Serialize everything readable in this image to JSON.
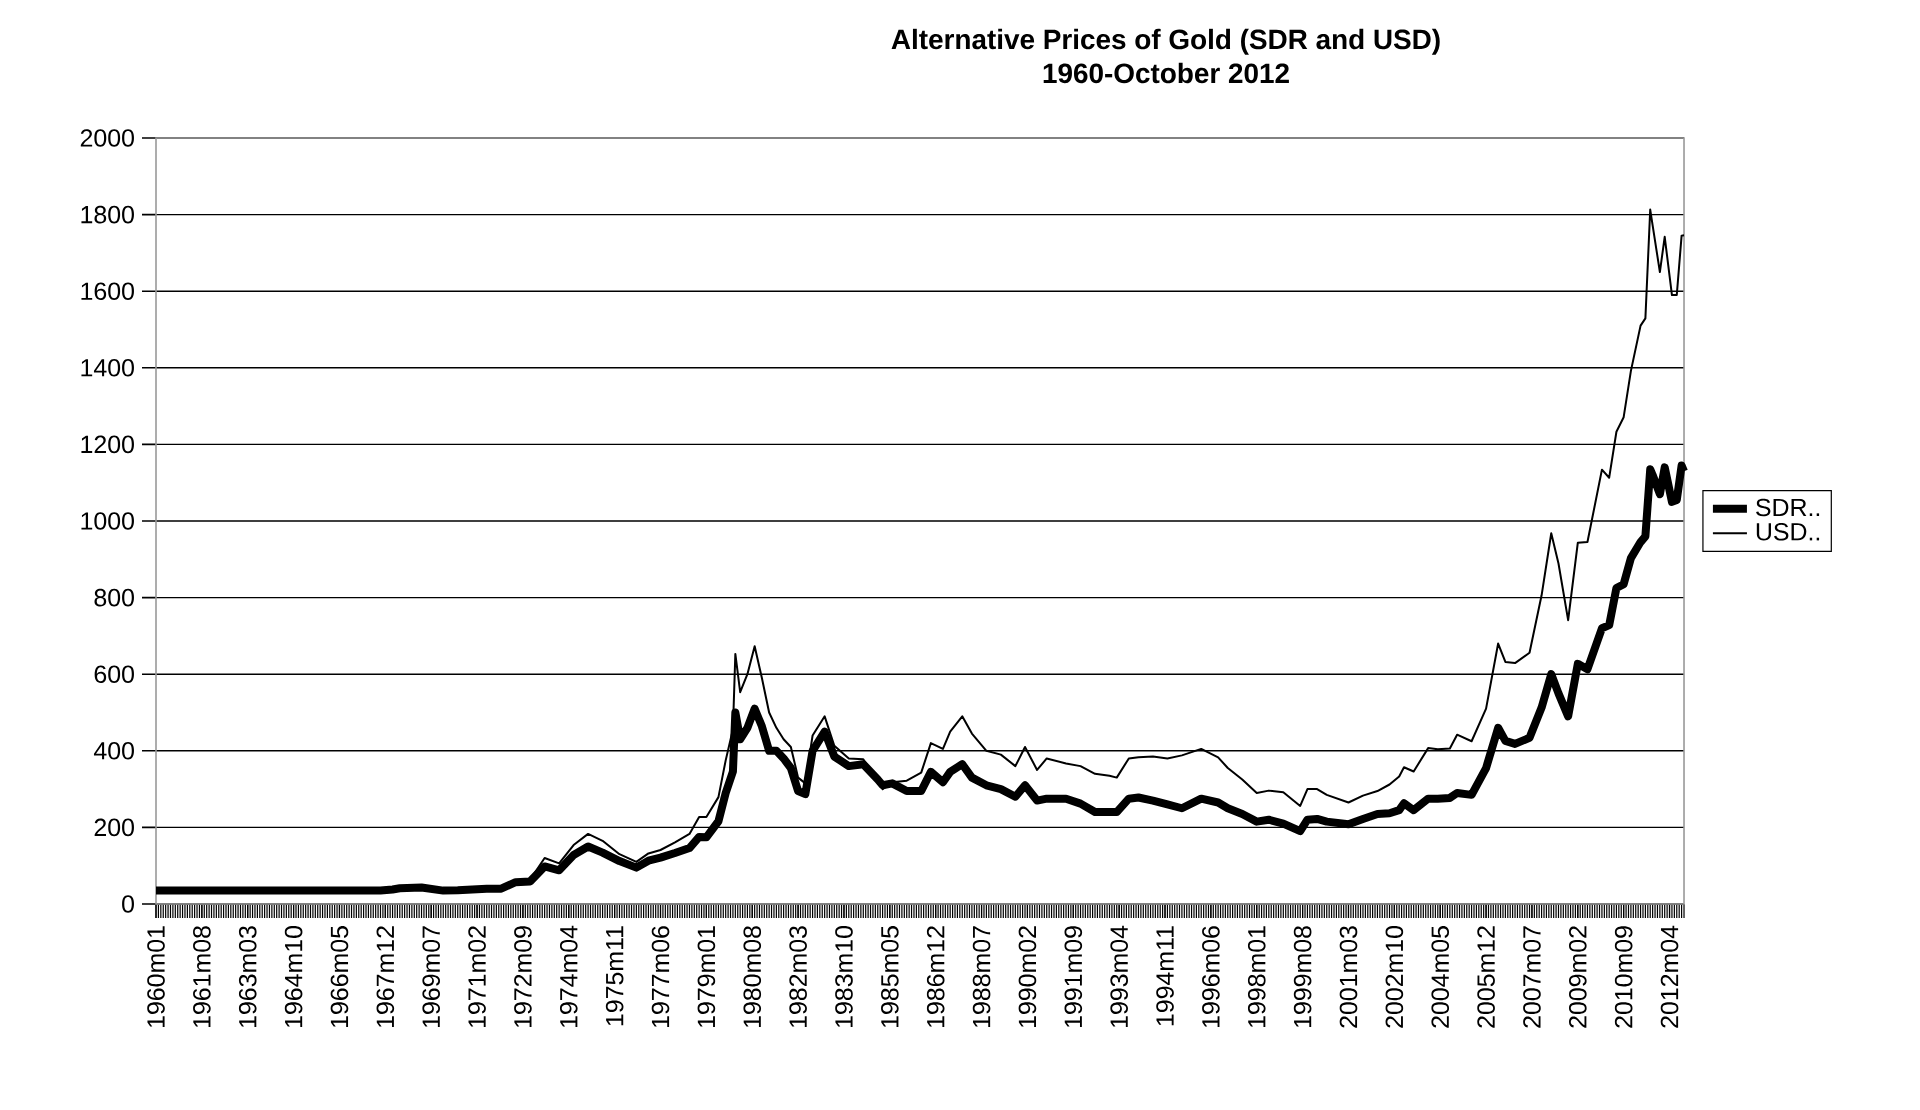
{
  "chart_data": {
    "type": "line",
    "title": "Alternative Prices of Gold (SDR and USD)",
    "subtitle": "1960-October 2012",
    "x": [
      "1960-01",
      "1967-10",
      "1968-03",
      "1968-06",
      "1969-03",
      "1969-12",
      "1970-06",
      "1971-06",
      "1971-12",
      "1972-06",
      "1972-12",
      "1973-06",
      "1973-12",
      "1974-06",
      "1974-12",
      "1975-06",
      "1976-01",
      "1976-08",
      "1977-01",
      "1977-06",
      "1977-12",
      "1978-06",
      "1978-10",
      "1979-01",
      "1979-06",
      "1979-09",
      "1979-12",
      "1980-01",
      "1980-03",
      "1980-06",
      "1980-09",
      "1980-12",
      "1981-03",
      "1981-06",
      "1981-09",
      "1981-12",
      "1982-03",
      "1982-06",
      "1982-09",
      "1983-02",
      "1983-06",
      "1983-12",
      "1984-06",
      "1984-12",
      "1985-02",
      "1985-06",
      "1985-12",
      "1986-06",
      "1986-10",
      "1987-03",
      "1987-06",
      "1987-11",
      "1988-03",
      "1988-09",
      "1989-03",
      "1989-09",
      "1990-01",
      "1990-06",
      "1990-10",
      "1991-06",
      "1991-12",
      "1992-06",
      "1992-12",
      "1993-03",
      "1993-08",
      "1993-12",
      "1994-06",
      "1994-12",
      "1995-06",
      "1996-02",
      "1996-09",
      "1997-01",
      "1997-07",
      "1998-01",
      "1998-06",
      "1998-12",
      "1999-07",
      "1999-10",
      "2000-02",
      "2000-06",
      "2001-03",
      "2001-09",
      "2002-03",
      "2002-08",
      "2002-12",
      "2003-02",
      "2003-06",
      "2003-12",
      "2004-04",
      "2004-09",
      "2004-12",
      "2005-06",
      "2005-12",
      "2006-05",
      "2006-08",
      "2006-12",
      "2007-06",
      "2007-11",
      "2008-03",
      "2008-06",
      "2008-10",
      "2009-02",
      "2009-06",
      "2009-12",
      "2010-03",
      "2010-06",
      "2010-09",
      "2010-12",
      "2011-04",
      "2011-06",
      "2011-08",
      "2011-09",
      "2011-12",
      "2012-02",
      "2012-05",
      "2012-07",
      "2012-09",
      "2012-10"
    ],
    "series": [
      {
        "name": "SDR..",
        "color": "#000000",
        "values": [
          35,
          35,
          38,
          41,
          43,
          35,
          36,
          40,
          40,
          57,
          59,
          98,
          88,
          128,
          150,
          134,
          112,
          95,
          113,
          121,
          133,
          146,
          175,
          174,
          216,
          290,
          346,
          500,
          430,
          460,
          510,
          464,
          400,
          400,
          380,
          355,
          295,
          287,
          400,
          450,
          385,
          360,
          365,
          325,
          310,
          315,
          295,
          295,
          345,
          318,
          345,
          365,
          330,
          310,
          300,
          280,
          310,
          270,
          275,
          275,
          262,
          240,
          240,
          240,
          275,
          278,
          270,
          260,
          250,
          275,
          265,
          250,
          235,
          215,
          220,
          210,
          190,
          220,
          222,
          215,
          208,
          222,
          235,
          237,
          245,
          263,
          245,
          275,
          275,
          277,
          290,
          285,
          355,
          460,
          426,
          418,
          434,
          513,
          600,
          550,
          490,
          627,
          613,
          720,
          728,
          825,
          835,
          903,
          945,
          960,
          1135,
          1120,
          1070,
          1140,
          1050,
          1055,
          1145,
          1130
        ]
      },
      {
        "name": "USD..",
        "color": "#000000",
        "values": [
          35,
          35,
          38,
          41,
          43,
          35,
          36,
          40,
          43,
          62,
          64,
          120,
          106,
          154,
          183,
          165,
          130,
          110,
          132,
          141,
          161,
          183,
          227,
          227,
          279,
          375,
          456,
          653,
          553,
          600,
          673,
          590,
          500,
          460,
          430,
          410,
          330,
          315,
          440,
          490,
          413,
          380,
          378,
          320,
          300,
          318,
          322,
          343,
          420,
          405,
          450,
          490,
          445,
          400,
          390,
          360,
          410,
          350,
          380,
          367,
          360,
          340,
          335,
          330,
          380,
          383,
          385,
          380,
          388,
          405,
          383,
          355,
          325,
          290,
          296,
          292,
          256,
          300,
          300,
          285,
          265,
          283,
          295,
          312,
          333,
          357,
          346,
          407,
          404,
          406,
          442,
          425,
          510,
          680,
          632,
          629,
          656,
          806,
          968,
          889,
          741,
          943,
          945,
          1134,
          1113,
          1233,
          1271,
          1392,
          1510,
          1529,
          1813,
          1772,
          1650,
          1742,
          1590,
          1590,
          1745,
          1746
        ]
      }
    ],
    "xlim": [
      "1960-01",
      "2012-10"
    ],
    "xticks": [
      {
        "value": "1960-01",
        "label": "1960m01"
      },
      {
        "value": "1961-08",
        "label": "1961m08"
      },
      {
        "value": "1963-03",
        "label": "1963m03"
      },
      {
        "value": "1964-10",
        "label": "1964m10"
      },
      {
        "value": "1966-05",
        "label": "1966m05"
      },
      {
        "value": "1967-12",
        "label": "1967m12"
      },
      {
        "value": "1969-07",
        "label": "1969m07"
      },
      {
        "value": "1971-02",
        "label": "1971m02"
      },
      {
        "value": "1972-09",
        "label": "1972m09"
      },
      {
        "value": "1974-04",
        "label": "1974m04"
      },
      {
        "value": "1975-11",
        "label": "1975m11"
      },
      {
        "value": "1977-06",
        "label": "1977m06"
      },
      {
        "value": "1979-01",
        "label": "1979m01"
      },
      {
        "value": "1980-08",
        "label": "1980m08"
      },
      {
        "value": "1982-03",
        "label": "1982m03"
      },
      {
        "value": "1983-10",
        "label": "1983m10"
      },
      {
        "value": "1985-05",
        "label": "1985m05"
      },
      {
        "value": "1986-12",
        "label": "1986m12"
      },
      {
        "value": "1988-07",
        "label": "1988m07"
      },
      {
        "value": "1990-02",
        "label": "1990m02"
      },
      {
        "value": "1991-09",
        "label": "1991m09"
      },
      {
        "value": "1993-04",
        "label": "1993m04"
      },
      {
        "value": "1994-11",
        "label": "1994m11"
      },
      {
        "value": "1996-06",
        "label": "1996m06"
      },
      {
        "value": "1998-01",
        "label": "1998m01"
      },
      {
        "value": "1999-08",
        "label": "1999m08"
      },
      {
        "value": "2001-03",
        "label": "2001m03"
      },
      {
        "value": "2002-10",
        "label": "2002m10"
      },
      {
        "value": "2004-05",
        "label": "2004m05"
      },
      {
        "value": "2005-12",
        "label": "2005m12"
      },
      {
        "value": "2007-07",
        "label": "2007m07"
      },
      {
        "value": "2009-02",
        "label": "2009m02"
      },
      {
        "value": "2010-09",
        "label": "2010m09"
      },
      {
        "value": "2012-04",
        "label": "2012m04"
      }
    ],
    "ylim": [
      0,
      2000
    ],
    "yticks": [
      0,
      200,
      400,
      600,
      800,
      1000,
      1200,
      1400,
      1600,
      1800,
      2000
    ],
    "grid": "y",
    "legend": "right"
  }
}
